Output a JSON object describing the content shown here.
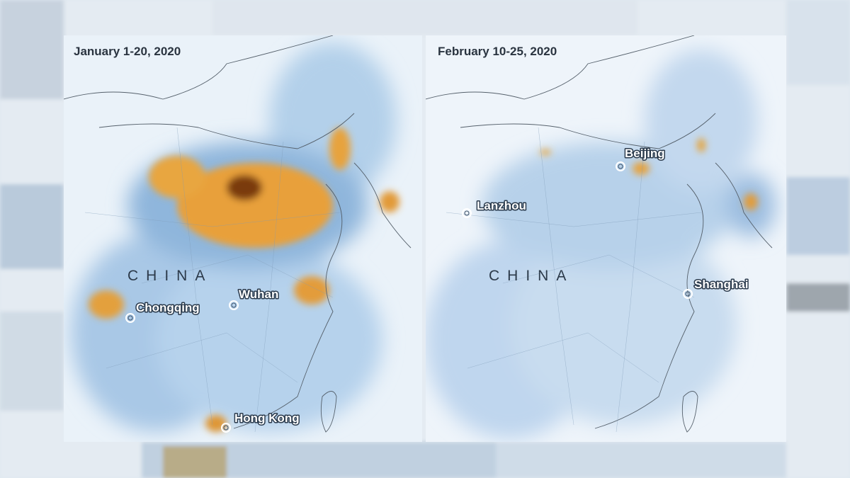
{
  "panels": [
    {
      "title": "January 1-20, 2020",
      "country": "CHINA",
      "cities": [
        "Chongqing",
        "Wuhan",
        "Hong Kong"
      ]
    },
    {
      "title": "February 10-25, 2020",
      "country": "CHINA",
      "cities": [
        "Lanzhou",
        "Beijing",
        "Shanghai"
      ]
    }
  ]
}
